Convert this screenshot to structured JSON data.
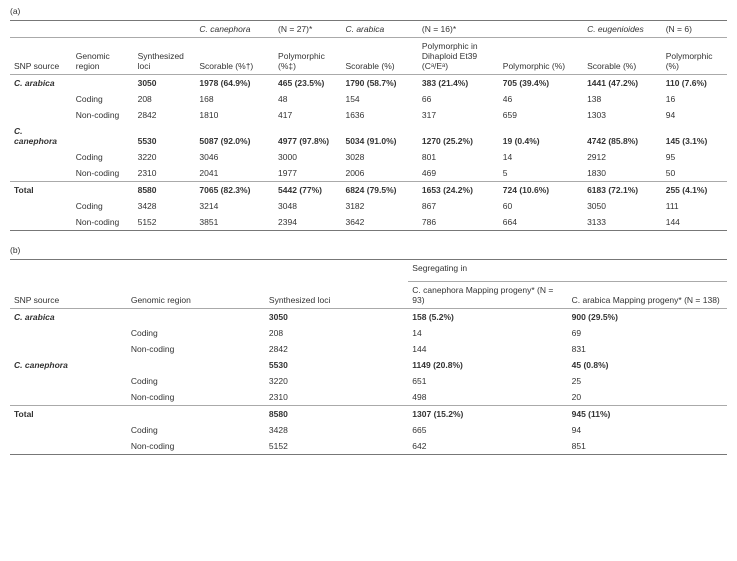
{
  "panelA": {
    "label": "(a)",
    "speciesHeaders": {
      "canephora": "C. canephora",
      "canephoraN": "(N = 27)*",
      "arabica": "C. arabica",
      "arabicaN": "(N = 16)*",
      "eugenioides": "C. eugenioides",
      "eugenioidesN": "(N = 6)"
    },
    "colHeaders": {
      "snpSource": "SNP source",
      "genomicRegion": "Genomic region",
      "synthesizedLoci": "Synthesized loci",
      "scorablePctDagger": "Scorable (%†)",
      "polymorphicPctDdagger": "Polymorphic (%‡)",
      "scorablePct": "Scorable (%)",
      "polyDihaploid": "Polymorphic in Dihaploid Et39 (Cᵃ/Eᵃ)",
      "polymorphicPct": "Polymorphic (%)",
      "scorablePct2": "Scorable (%)",
      "polymorphicPct2": "Polymorphic (%)"
    },
    "rows": [
      {
        "bold": true,
        "cells": [
          "C. arabica",
          "",
          "3050",
          "1978 (64.9%)",
          "465 (23.5%)",
          "1790 (58.7%)",
          "383 (21.4%)",
          "705 (39.4%)",
          "1441 (47.2%)",
          "110 (7.6%)"
        ]
      },
      {
        "bold": false,
        "cells": [
          "",
          "Coding",
          "208",
          "168",
          "48",
          "154",
          "66",
          "46",
          "138",
          "16"
        ]
      },
      {
        "bold": false,
        "cells": [
          "",
          "Non-coding",
          "2842",
          "1810",
          "417",
          "1636",
          "317",
          "659",
          "1303",
          "94"
        ]
      },
      {
        "bold": true,
        "cells": [
          "C. canephora",
          "",
          "5530",
          "5087 (92.0%)",
          "4977 (97.8%)",
          "5034 (91.0%)",
          "1270 (25.2%)",
          "19 (0.4%)",
          "4742 (85.8%)",
          "145 (3.1%)"
        ]
      },
      {
        "bold": false,
        "cells": [
          "",
          "Coding",
          "3220",
          "3046",
          "3000",
          "3028",
          "801",
          "14",
          "2912",
          "95"
        ]
      },
      {
        "bold": false,
        "cells": [
          "",
          "Non-coding",
          "2310",
          "2041",
          "1977",
          "2006",
          "469",
          "5",
          "1830",
          "50"
        ]
      }
    ],
    "totalRows": [
      {
        "bold": true,
        "cells": [
          "Total",
          "",
          "8580",
          "7065 (82.3%)",
          "5442 (77%)",
          "6824 (79.5%)",
          "1653 (24.2%)",
          "724 (10.6%)",
          "6183 (72.1%)",
          "255 (4.1%)"
        ]
      },
      {
        "bold": false,
        "cells": [
          "",
          "Coding",
          "3428",
          "3214",
          "3048",
          "3182",
          "867",
          "60",
          "3050",
          "111"
        ]
      },
      {
        "bold": false,
        "cells": [
          "",
          "Non-coding",
          "5152",
          "3851",
          "2394",
          "3642",
          "786",
          "664",
          "3133",
          "144"
        ]
      }
    ]
  },
  "panelB": {
    "label": "(b)",
    "segregatingIn": "Segregating in",
    "colHeaders": {
      "snpSource": "SNP source",
      "genomicRegion": "Genomic region",
      "synthesizedLoci": "Synthesized loci",
      "canephoraMapping": "C. canephora Mapping progeny* (N = 93)",
      "arabicaMapping": "C. arabica Mapping progeny* (N = 138)"
    },
    "rows": [
      {
        "bold": true,
        "cells": [
          "C. arabica",
          "",
          "3050",
          "158 (5.2%)",
          "900 (29.5%)"
        ]
      },
      {
        "bold": false,
        "cells": [
          "",
          "Coding",
          "208",
          "14",
          "69"
        ]
      },
      {
        "bold": false,
        "cells": [
          "",
          "Non-coding",
          "2842",
          "144",
          "831"
        ]
      },
      {
        "bold": true,
        "cells": [
          "C. canephora",
          "",
          "5530",
          "1149 (20.8%)",
          "45 (0.8%)"
        ]
      },
      {
        "bold": false,
        "cells": [
          "",
          "Coding",
          "3220",
          "651",
          "25"
        ]
      },
      {
        "bold": false,
        "cells": [
          "",
          "Non-coding",
          "2310",
          "498",
          "20"
        ]
      }
    ],
    "totalRows": [
      {
        "bold": true,
        "cells": [
          "Total",
          "",
          "8580",
          "1307 (15.2%)",
          "945 (11%)"
        ]
      },
      {
        "bold": false,
        "cells": [
          "",
          "Coding",
          "3428",
          "665",
          "94"
        ]
      },
      {
        "bold": false,
        "cells": [
          "",
          "Non-coding",
          "5152",
          "642",
          "851"
        ]
      }
    ]
  }
}
